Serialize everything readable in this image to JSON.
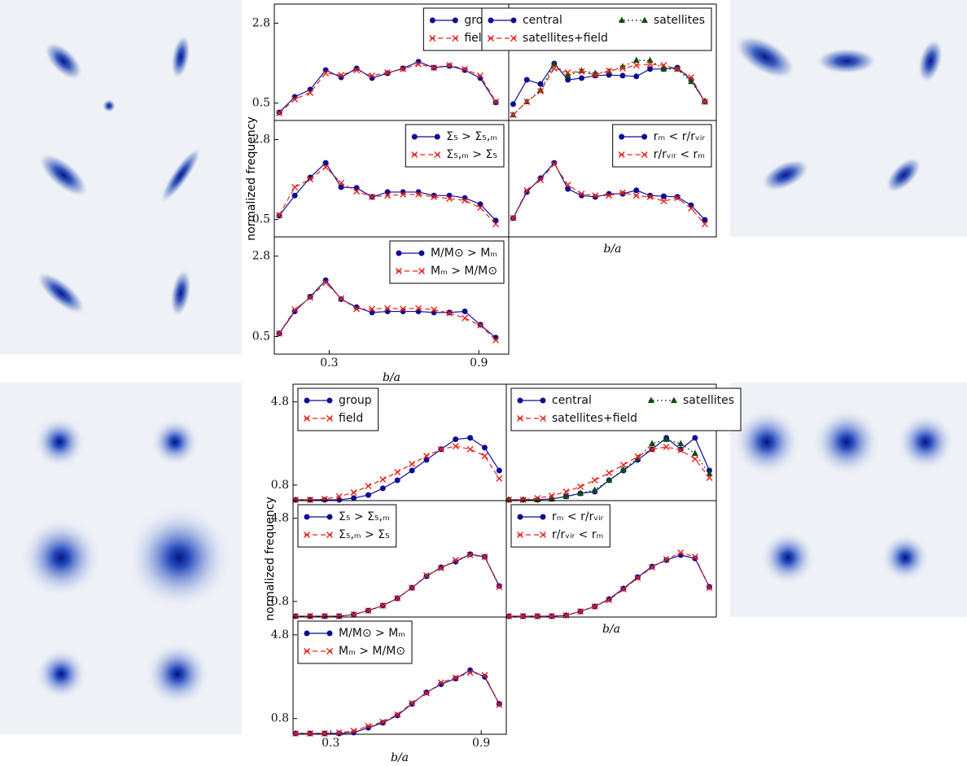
{
  "chart_data": [
    {
      "type": "line",
      "legend": "upper right",
      "x": [
        0.1,
        0.162,
        0.224,
        0.286,
        0.348,
        0.41,
        0.472,
        0.534,
        0.596,
        0.658,
        0.72,
        0.782,
        0.844,
        0.906,
        0.968
      ],
      "xlim": [
        0.08,
        1.02
      ],
      "ylim": [
        0,
        3.35
      ],
      "yticks": [
        0.5,
        2.8
      ],
      "series": [
        {
          "name": "group",
          "color": "#0c0c96",
          "linestyle": "solid",
          "marker": "o",
          "values": [
            0.23,
            0.68,
            0.89,
            1.45,
            1.24,
            1.5,
            1.22,
            1.36,
            1.5,
            1.69,
            1.52,
            1.57,
            1.45,
            1.22,
            0.52
          ]
        },
        {
          "name": "field",
          "color": "#e8231a",
          "linestyle": "dashed",
          "marker": "x",
          "values": [
            0.21,
            0.61,
            0.8,
            1.36,
            1.31,
            1.45,
            1.29,
            1.38,
            1.48,
            1.62,
            1.52,
            1.59,
            1.48,
            1.29,
            0.54
          ]
        }
      ]
    },
    {
      "type": "line",
      "legend": "upper right",
      "x": [
        0.1,
        0.162,
        0.224,
        0.286,
        0.348,
        0.41,
        0.472,
        0.534,
        0.596,
        0.658,
        0.72,
        0.782,
        0.844,
        0.906,
        0.968
      ],
      "xlim": [
        0.08,
        1.02
      ],
      "ylim": [
        0,
        3.35
      ],
      "series": [
        {
          "name": "central",
          "color": "#0c0c96",
          "linestyle": "solid",
          "marker": "o",
          "values": [
            0.47,
            1.17,
            1.05,
            1.64,
            1.17,
            1.22,
            1.29,
            1.31,
            1.29,
            1.27,
            1.48,
            1.48,
            1.52,
            1.17,
            0.54
          ]
        },
        {
          "name": "satellites",
          "color": "#0d4d10",
          "linestyle": "dotted",
          "marker": "^",
          "values": [
            0.16,
            0.54,
            0.87,
            1.62,
            1.29,
            1.43,
            1.36,
            1.41,
            1.55,
            1.73,
            1.73,
            1.48,
            1.48,
            1.12,
            0.56
          ]
        },
        {
          "name": "satellites+field",
          "color": "#e8231a",
          "linestyle": "dashed",
          "marker": "x",
          "values": [
            0.16,
            0.54,
            0.84,
            1.5,
            1.38,
            1.41,
            1.31,
            1.43,
            1.5,
            1.59,
            1.62,
            1.59,
            1.48,
            1.24,
            0.54
          ]
        }
      ]
    },
    {
      "type": "line",
      "legend": "upper right",
      "ylabel": "normalized frequency",
      "x": [
        0.1,
        0.162,
        0.224,
        0.286,
        0.348,
        0.41,
        0.472,
        0.534,
        0.596,
        0.658,
        0.72,
        0.782,
        0.844,
        0.906,
        0.968
      ],
      "xlim": [
        0.08,
        1.02
      ],
      "ylim": [
        0,
        3.35
      ],
      "yticks": [
        0.5,
        2.8
      ],
      "series": [
        {
          "name": "Σ₅ > Σ₅,ₘ",
          "color": "#0c0c96",
          "linestyle": "solid",
          "marker": "o",
          "values": [
            0.61,
            1.19,
            1.71,
            2.13,
            1.43,
            1.41,
            1.15,
            1.29,
            1.29,
            1.29,
            1.19,
            1.19,
            1.12,
            0.94,
            0.47
          ]
        },
        {
          "name": "Σ₅,ₘ > Σ₅",
          "color": "#e8231a",
          "linestyle": "dashed",
          "marker": "x",
          "values": [
            0.63,
            1.43,
            1.66,
            2.01,
            1.55,
            1.31,
            1.15,
            1.19,
            1.22,
            1.22,
            1.15,
            1.1,
            1.05,
            0.84,
            0.37
          ]
        }
      ]
    },
    {
      "type": "line",
      "legend": "upper right",
      "xlabel": "b/a",
      "x": [
        0.1,
        0.162,
        0.224,
        0.286,
        0.348,
        0.41,
        0.472,
        0.534,
        0.596,
        0.658,
        0.72,
        0.782,
        0.844,
        0.906,
        0.968
      ],
      "xlim": [
        0.08,
        1.02
      ],
      "ylim": [
        0,
        3.35
      ],
      "series": [
        {
          "name": "rₘ < r/rᵥᵢᵣ",
          "color": "#0c0c96",
          "linestyle": "solid",
          "marker": "o",
          "values": [
            0.54,
            1.29,
            1.69,
            2.13,
            1.38,
            1.19,
            1.15,
            1.24,
            1.24,
            1.34,
            1.19,
            1.17,
            1.15,
            0.91,
            0.49
          ]
        },
        {
          "name": "r/rᵥᵢᵣ < rₘ",
          "color": "#e8231a",
          "linestyle": "dashed",
          "marker": "x",
          "values": [
            0.54,
            1.34,
            1.64,
            2.09,
            1.5,
            1.24,
            1.19,
            1.19,
            1.27,
            1.19,
            1.15,
            1.03,
            1.12,
            0.82,
            0.37
          ]
        }
      ]
    },
    {
      "type": "line",
      "legend": "upper right",
      "xlabel": "b/a",
      "x": [
        0.1,
        0.162,
        0.224,
        0.286,
        0.348,
        0.41,
        0.472,
        0.534,
        0.596,
        0.658,
        0.72,
        0.782,
        0.844,
        0.906,
        0.968
      ],
      "xlim": [
        0.08,
        1.02
      ],
      "ylim": [
        0,
        3.35
      ],
      "yticks": [
        0.5,
        2.8
      ],
      "xticks": [
        0.3,
        0.9
      ],
      "series": [
        {
          "name": "M/M⊙ > Mₘ",
          "color": "#0c0c96",
          "linestyle": "solid",
          "marker": "o",
          "values": [
            0.59,
            1.22,
            1.64,
            2.11,
            1.57,
            1.34,
            1.19,
            1.22,
            1.22,
            1.22,
            1.19,
            1.19,
            1.22,
            0.84,
            0.47
          ]
        },
        {
          "name": "Mₘ > M/M⊙",
          "color": "#e8231a",
          "linestyle": "dashed",
          "marker": "x",
          "values": [
            0.59,
            1.27,
            1.62,
            2.04,
            1.59,
            1.29,
            1.29,
            1.31,
            1.29,
            1.31,
            1.27,
            1.17,
            1.03,
            0.82,
            0.4
          ]
        }
      ]
    },
    {
      "type": "line",
      "legend": "upper left",
      "x": [
        0.16,
        0.218,
        0.276,
        0.334,
        0.392,
        0.45,
        0.508,
        0.566,
        0.624,
        0.682,
        0.74,
        0.798,
        0.856,
        0.914,
        0.972
      ],
      "xlim": [
        0.15,
        1.0
      ],
      "ylim": [
        0.05,
        5.65
      ],
      "yticks": [
        0.8,
        4.8
      ],
      "series": [
        {
          "name": "group",
          "color": "#0c0c96",
          "linestyle": "solid",
          "marker": "o",
          "values": [
            0.09,
            0.09,
            0.09,
            0.09,
            0.17,
            0.32,
            0.64,
            1.03,
            1.5,
            2.01,
            2.52,
            3.0,
            3.07,
            2.6,
            1.5
          ]
        },
        {
          "name": "field",
          "color": "#e8231a",
          "linestyle": "dashed",
          "marker": "x",
          "values": [
            0.09,
            0.09,
            0.13,
            0.25,
            0.44,
            0.75,
            1.07,
            1.42,
            1.81,
            2.2,
            2.52,
            2.67,
            2.52,
            2.2,
            1.11
          ]
        }
      ]
    },
    {
      "type": "line",
      "legend": "upper left",
      "x": [
        0.16,
        0.218,
        0.276,
        0.334,
        0.392,
        0.45,
        0.508,
        0.566,
        0.624,
        0.682,
        0.74,
        0.798,
        0.856,
        0.914,
        0.972
      ],
      "xlim": [
        0.15,
        1.0
      ],
      "ylim": [
        0.05,
        5.65
      ],
      "series": [
        {
          "name": "central",
          "color": "#0c0c96",
          "linestyle": "solid",
          "marker": "o",
          "values": [
            0.09,
            0.09,
            0.09,
            0.13,
            0.25,
            0.4,
            0.48,
            1.03,
            1.5,
            2.01,
            2.52,
            3.07,
            2.52,
            3.07,
            1.5
          ]
        },
        {
          "name": "satellites",
          "color": "#0d4d10",
          "linestyle": "dotted",
          "marker": "^",
          "values": [
            0.09,
            0.09,
            0.09,
            0.13,
            0.25,
            0.4,
            0.56,
            1.03,
            1.54,
            2.09,
            2.79,
            2.99,
            2.79,
            2.32,
            1.34
          ]
        },
        {
          "name": "satellites+field",
          "color": "#e8231a",
          "linestyle": "dashed",
          "marker": "x",
          "values": [
            0.09,
            0.09,
            0.17,
            0.28,
            0.48,
            0.72,
            1.03,
            1.38,
            1.77,
            2.17,
            2.52,
            2.63,
            2.48,
            2.05,
            1.15
          ]
        }
      ]
    },
    {
      "type": "line",
      "legend": "upper left",
      "ylabel": "normalized frequency",
      "x": [
        0.16,
        0.218,
        0.276,
        0.334,
        0.392,
        0.45,
        0.508,
        0.566,
        0.624,
        0.682,
        0.74,
        0.798,
        0.856,
        0.914,
        0.972
      ],
      "xlim": [
        0.15,
        1.0
      ],
      "ylim": [
        0.05,
        5.65
      ],
      "yticks": [
        0.8,
        4.8
      ],
      "series": [
        {
          "name": "Σ₅ > Σ₅,ₘ",
          "color": "#0c0c96",
          "linestyle": "solid",
          "marker": "o",
          "values": [
            0.09,
            0.09,
            0.09,
            0.09,
            0.17,
            0.36,
            0.6,
            0.95,
            1.46,
            2.01,
            2.44,
            2.71,
            3.07,
            2.95,
            1.54
          ]
        },
        {
          "name": "Σ₅,ₘ > Σ₅",
          "color": "#e8231a",
          "linestyle": "dashed",
          "marker": "x",
          "values": [
            0.09,
            0.09,
            0.09,
            0.09,
            0.17,
            0.36,
            0.6,
            0.95,
            1.46,
            2.05,
            2.4,
            2.79,
            3.03,
            2.95,
            1.5
          ]
        }
      ]
    },
    {
      "type": "line",
      "legend": "upper left",
      "xlabel": "b/a",
      "x": [
        0.16,
        0.218,
        0.276,
        0.334,
        0.392,
        0.45,
        0.508,
        0.566,
        0.624,
        0.682,
        0.74,
        0.798,
        0.856,
        0.914,
        0.972
      ],
      "xlim": [
        0.15,
        1.0
      ],
      "ylim": [
        0.05,
        5.65
      ],
      "series": [
        {
          "name": "rₘ < r/rᵥᵢᵣ",
          "color": "#0c0c96",
          "linestyle": "solid",
          "marker": "o",
          "values": [
            0.09,
            0.09,
            0.09,
            0.09,
            0.13,
            0.32,
            0.56,
            0.91,
            1.42,
            1.97,
            2.48,
            2.79,
            3.03,
            2.87,
            1.5
          ]
        },
        {
          "name": "r/rᵥᵢᵣ < rₘ",
          "color": "#e8231a",
          "linestyle": "dashed",
          "marker": "x",
          "values": [
            0.09,
            0.09,
            0.09,
            0.09,
            0.13,
            0.32,
            0.56,
            0.87,
            1.38,
            1.93,
            2.44,
            2.83,
            3.15,
            2.95,
            1.46
          ]
        }
      ]
    },
    {
      "type": "line",
      "legend": "upper left",
      "xlabel": "b/a",
      "x": [
        0.16,
        0.218,
        0.276,
        0.334,
        0.392,
        0.45,
        0.508,
        0.566,
        0.624,
        0.682,
        0.74,
        0.798,
        0.856,
        0.914,
        0.972
      ],
      "xlim": [
        0.15,
        1.0
      ],
      "ylim": [
        0.05,
        5.65
      ],
      "yticks": [
        0.8,
        4.8
      ],
      "xticks": [
        0.3,
        0.9
      ],
      "series": [
        {
          "name": "M/M⊙ > Mₘ",
          "color": "#0c0c96",
          "linestyle": "solid",
          "marker": "o",
          "values": [
            0.09,
            0.09,
            0.09,
            0.09,
            0.13,
            0.36,
            0.6,
            0.95,
            1.5,
            2.05,
            2.44,
            2.71,
            3.11,
            2.79,
            1.5
          ]
        },
        {
          "name": "Mₘ > M/M⊙",
          "color": "#e8231a",
          "linestyle": "dashed",
          "marker": "x",
          "values": [
            0.09,
            0.09,
            0.09,
            0.13,
            0.21,
            0.44,
            0.64,
            0.99,
            1.54,
            2.01,
            2.52,
            2.75,
            2.99,
            2.87,
            1.46
          ]
        }
      ]
    }
  ]
}
